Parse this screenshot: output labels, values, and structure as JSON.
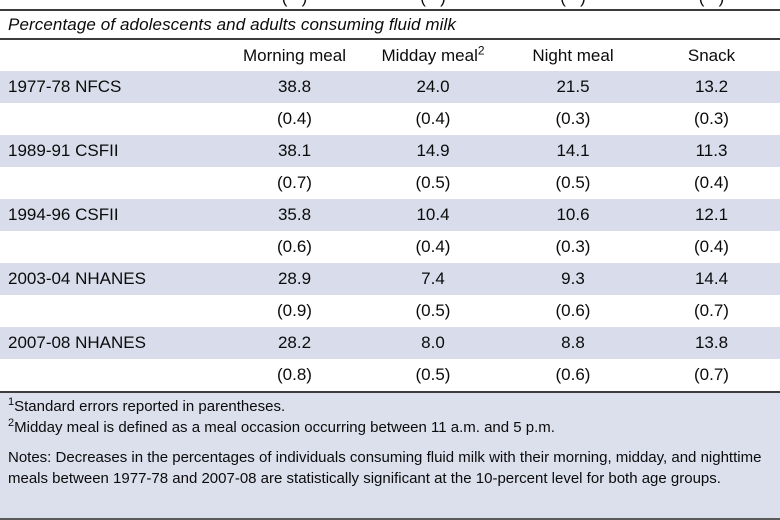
{
  "title": "Percentage of adolescents and adults consuming fluid milk",
  "table": {
    "top_partial_cells": [
      "(   )",
      "(   )",
      "(   )",
      "(   )"
    ],
    "columns": [
      {
        "label": "",
        "sup": ""
      },
      {
        "label": "Morning meal",
        "sup": ""
      },
      {
        "label": "Midday meal",
        "sup": "2"
      },
      {
        "label": "Night meal",
        "sup": ""
      },
      {
        "label": "Snack",
        "sup": ""
      }
    ],
    "rows": [
      {
        "label": "1977-78 NFCS",
        "values": [
          "38.8",
          "24.0",
          "21.5",
          "13.2"
        ],
        "shaded": true
      },
      {
        "label": "",
        "values": [
          "(0.4)",
          "(0.4)",
          "(0.3)",
          "(0.3)"
        ],
        "shaded": false
      },
      {
        "label": "1989-91 CSFII",
        "values": [
          "38.1",
          "14.9",
          "14.1",
          "11.3"
        ],
        "shaded": true
      },
      {
        "label": "",
        "values": [
          "(0.7)",
          "(0.5)",
          "(0.5)",
          "(0.4)"
        ],
        "shaded": false
      },
      {
        "label": "1994-96 CSFII",
        "values": [
          "35.8",
          "10.4",
          "10.6",
          "12.1"
        ],
        "shaded": true
      },
      {
        "label": "",
        "values": [
          "(0.6)",
          "(0.4)",
          "(0.3)",
          "(0.4)"
        ],
        "shaded": false
      },
      {
        "label": "2003-04 NHANES",
        "values": [
          "28.9",
          "7.4",
          "9.3",
          "14.4"
        ],
        "shaded": true
      },
      {
        "label": "",
        "values": [
          "(0.9)",
          "(0.5)",
          "(0.6)",
          "(0.7)"
        ],
        "shaded": false
      },
      {
        "label": "2007-08 NHANES",
        "values": [
          "28.2",
          "8.0",
          "8.8",
          "13.8"
        ],
        "shaded": true
      },
      {
        "label": "",
        "values": [
          "(0.8)",
          "(0.5)",
          "(0.6)",
          "(0.7)"
        ],
        "shaded": false
      }
    ]
  },
  "footnotes": [
    {
      "sup": "1",
      "text": "Standard errors reported in parentheses."
    },
    {
      "sup": "2",
      "text": "Midday meal is defined as a meal occasion occurring between 11 a.m. and 5 p.m."
    }
  ],
  "notes": "Notes: Decreases in the percentages of individuals consuming fluid milk with their morning, midday, and nighttime meals between 1977-78 and 2007-08 are statistically significant at the 10-percent level for both age groups.",
  "colors": {
    "row_shade": "#d9ddeb",
    "footer_background": "#dce0ed",
    "rule": "#3c3c3c"
  }
}
